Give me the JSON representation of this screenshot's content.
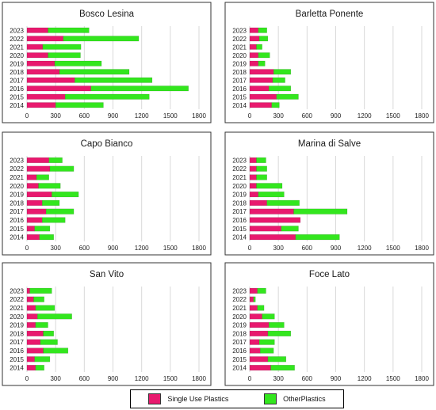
{
  "colors": {
    "single_use": "#e8196e",
    "other": "#33e61e",
    "grid": "#d9d9d9",
    "frame": "#333333"
  },
  "legend": {
    "single_use_label": "Single Use Plastics",
    "other_label": "OtherPlastics"
  },
  "chart_data": [
    {
      "type": "bar",
      "orientation": "horizontal",
      "stacked": true,
      "title": "Bosco Lesina",
      "categories": [
        "2023",
        "2022",
        "2021",
        "2020",
        "2019",
        "2018",
        "2017",
        "2016",
        "2015",
        "2014"
      ],
      "xticks": [
        0,
        300,
        600,
        900,
        1200,
        1500,
        1800
      ],
      "xlim": [
        0,
        1800
      ],
      "series": [
        {
          "name": "Single Use Plastics",
          "values": [
            220,
            380,
            165,
            220,
            290,
            340,
            500,
            670,
            400,
            300
          ]
        },
        {
          "name": "OtherPlastics",
          "values": [
            430,
            790,
            400,
            340,
            490,
            730,
            810,
            1020,
            880,
            500
          ]
        }
      ]
    },
    {
      "type": "bar",
      "orientation": "horizontal",
      "stacked": true,
      "title": "Barletta Ponente",
      "categories": [
        "2023",
        "2022",
        "2021",
        "2020",
        "2019",
        "2018",
        "2017",
        "2016",
        "2015",
        "2014"
      ],
      "xticks": [
        0,
        300,
        600,
        900,
        1200,
        1500,
        1800
      ],
      "xlim": [
        0,
        1800
      ],
      "series": [
        {
          "name": "Single Use Plastics",
          "values": [
            90,
            100,
            70,
            90,
            90,
            250,
            240,
            200,
            280,
            230
          ]
        },
        {
          "name": "OtherPlastics",
          "values": [
            90,
            90,
            60,
            120,
            70,
            180,
            130,
            230,
            230,
            80
          ]
        }
      ]
    },
    {
      "type": "bar",
      "orientation": "horizontal",
      "stacked": true,
      "title": "Capo Bianco",
      "categories": [
        "2023",
        "2022",
        "2021",
        "2020",
        "2019",
        "2018",
        "2017",
        "2016",
        "2015",
        "2014"
      ],
      "xticks": [
        0,
        300,
        600,
        900,
        1200,
        1500,
        1800
      ],
      "xlim": [
        0,
        1800
      ],
      "series": [
        {
          "name": "Single Use Plastics",
          "values": [
            230,
            240,
            100,
            120,
            260,
            160,
            200,
            160,
            80,
            130
          ]
        },
        {
          "name": "OtherPlastics",
          "values": [
            140,
            250,
            130,
            230,
            280,
            180,
            290,
            240,
            160,
            150
          ]
        }
      ]
    },
    {
      "type": "bar",
      "orientation": "horizontal",
      "stacked": true,
      "title": "Marina di Salve",
      "categories": [
        "2023",
        "2022",
        "2021",
        "2020",
        "2019",
        "2018",
        "2017",
        "2016",
        "2015",
        "2014"
      ],
      "xticks": [
        0,
        300,
        600,
        900,
        1200,
        1500,
        1800
      ],
      "xlim": [
        0,
        1800
      ],
      "series": [
        {
          "name": "Single Use Plastics",
          "values": [
            70,
            70,
            70,
            70,
            90,
            180,
            460,
            530,
            330,
            480
          ]
        },
        {
          "name": "OtherPlastics",
          "values": [
            100,
            110,
            110,
            270,
            270,
            340,
            560,
            0,
            180,
            460
          ]
        }
      ]
    },
    {
      "type": "bar",
      "orientation": "horizontal",
      "stacked": true,
      "title": "San Vito",
      "categories": [
        "2023",
        "2022",
        "2021",
        "2020",
        "2019",
        "2018",
        "2017",
        "2016",
        "2015",
        "2014"
      ],
      "xticks": [
        0,
        300,
        600,
        900,
        1200,
        1500,
        1800
      ],
      "xlim": [
        0,
        1800
      ],
      "series": [
        {
          "name": "Single Use Plastics",
          "values": [
            30,
            70,
            90,
            110,
            90,
            170,
            140,
            170,
            80,
            90
          ]
        },
        {
          "name": "OtherPlastics",
          "values": [
            230,
            110,
            200,
            360,
            130,
            110,
            180,
            260,
            160,
            90
          ]
        }
      ]
    },
    {
      "type": "bar",
      "orientation": "horizontal",
      "stacked": true,
      "title": "Foce Lato",
      "categories": [
        "2023",
        "2022",
        "2021",
        "2020",
        "2019",
        "2018",
        "2017",
        "2016",
        "2015",
        "2014"
      ],
      "xticks": [
        0,
        300,
        600,
        900,
        1200,
        1500,
        1800
      ],
      "xlim": [
        0,
        1800
      ],
      "series": [
        {
          "name": "Single Use Plastics",
          "values": [
            80,
            40,
            80,
            130,
            200,
            190,
            100,
            110,
            190,
            220
          ]
        },
        {
          "name": "OtherPlastics",
          "values": [
            90,
            20,
            70,
            130,
            160,
            240,
            160,
            140,
            190,
            250
          ]
        }
      ]
    }
  ]
}
